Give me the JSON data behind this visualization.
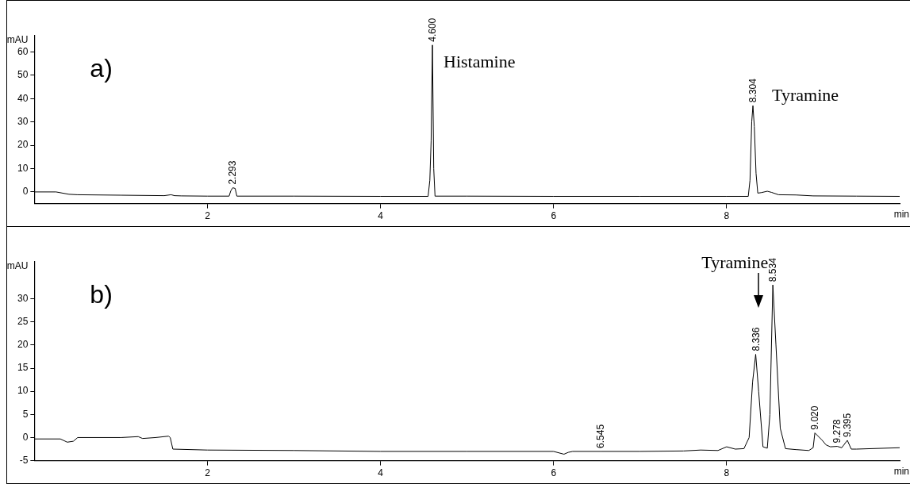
{
  "chart_data": [
    {
      "type": "line",
      "title": "a)",
      "xlabel": "min",
      "ylabel": "mAU",
      "xlim": [
        0,
        10
      ],
      "xticks": [
        2,
        4,
        6,
        8
      ],
      "ylim": [
        -5,
        67
      ],
      "yticks": [
        0,
        10,
        20,
        30,
        40,
        50,
        60
      ],
      "grid": false,
      "legend": false,
      "marker": "none",
      "annotations": [
        {
          "text": "2.293",
          "x": 2.293,
          "y": 1.8
        },
        {
          "text": "4.600",
          "x": 4.6,
          "y": 63
        },
        {
          "text": "Histamine",
          "x": 4.6,
          "y": 63
        },
        {
          "text": "8.304",
          "x": 8.304,
          "y": 37
        },
        {
          "text": "Tyramine",
          "x": 8.304,
          "y": 37
        }
      ],
      "series": [
        {
          "color": "#000000",
          "x": [
            0,
            0.25,
            0.4,
            0.5,
            1.0,
            1.5,
            1.58,
            1.62,
            1.7,
            2.0,
            2.25,
            2.27,
            2.293,
            2.32,
            2.34,
            3.0,
            4.0,
            4.55,
            4.57,
            4.585,
            4.6,
            4.615,
            4.63,
            5.0,
            6.0,
            7.0,
            8.0,
            8.25,
            8.27,
            8.29,
            8.304,
            8.32,
            8.34,
            8.36,
            8.4,
            8.47,
            8.52,
            8.6,
            8.8,
            9.0,
            9.5,
            10
          ],
          "values": [
            0,
            0,
            -1,
            -1.2,
            -1.4,
            -1.6,
            -1.2,
            -1.6,
            -1.7,
            -1.8,
            -1.8,
            0.5,
            1.8,
            1.5,
            -1.8,
            -1.8,
            -1.9,
            -1.9,
            5,
            22,
            63,
            10,
            -1.8,
            -1.8,
            -1.9,
            -1.9,
            -1.9,
            -1.9,
            5,
            30,
            37,
            28,
            8,
            -0.5,
            -0.3,
            0.3,
            -0.2,
            -1.2,
            -1.3,
            -1.7,
            -1.8,
            -1.9
          ]
        }
      ]
    },
    {
      "type": "line",
      "title": "b)",
      "xlabel": "min",
      "ylabel": "mAU",
      "xlim": [
        0,
        10
      ],
      "xticks": [
        2,
        4,
        6,
        8
      ],
      "ylim": [
        -5,
        38
      ],
      "yticks": [
        -5,
        0,
        5,
        10,
        15,
        20,
        25,
        30
      ],
      "grid": false,
      "legend": false,
      "marker": "none",
      "annotations": [
        {
          "text": "6.545",
          "x": 6.545,
          "y": -3
        },
        {
          "text": "8.336",
          "x": 8.336,
          "y": 18
        },
        "Tyramine",
        {
          "text": "8.534",
          "x": 8.534,
          "y": 33
        },
        {
          "text": "9.020",
          "x": 9.02,
          "y": 1
        },
        {
          "text": "9.278",
          "x": 9.278,
          "y": -1.9
        },
        {
          "text": "9.395",
          "x": 9.395,
          "y": -0.6
        }
      ],
      "series": [
        {
          "color": "#000000",
          "x": [
            0,
            0.3,
            0.38,
            0.45,
            0.5,
            1.0,
            1.2,
            1.25,
            1.4,
            1.55,
            1.57,
            1.6,
            2.0,
            3.0,
            4.0,
            5.0,
            6.0,
            6.12,
            6.17,
            6.22,
            6.545,
            7.0,
            7.5,
            7.7,
            7.9,
            8.0,
            8.1,
            8.2,
            8.26,
            8.3,
            8.336,
            8.37,
            8.42,
            8.47,
            8.5,
            8.534,
            8.57,
            8.62,
            8.68,
            8.8,
            8.95,
            9.0,
            9.02,
            9.1,
            9.15,
            9.2,
            9.278,
            9.33,
            9.395,
            9.44,
            9.5,
            10
          ],
          "values": [
            -0.3,
            -0.3,
            -1,
            -0.8,
            0,
            0,
            0.2,
            -0.2,
            0,
            0.3,
            0,
            -2.5,
            -2.7,
            -2.8,
            -3,
            -3,
            -3,
            -3.6,
            -3.2,
            -3,
            -3,
            -3,
            -2.9,
            -2.7,
            -2.8,
            -2,
            -2.5,
            -2.4,
            0,
            12,
            18,
            10,
            -2,
            -2.3,
            5,
            33,
            20,
            2,
            -2.4,
            -2.6,
            -2.8,
            -2.2,
            1,
            -0.5,
            -1.6,
            -2,
            -1.9,
            -2.2,
            -0.6,
            -2.5,
            -2.5,
            -2.2
          ]
        }
      ]
    }
  ]
}
